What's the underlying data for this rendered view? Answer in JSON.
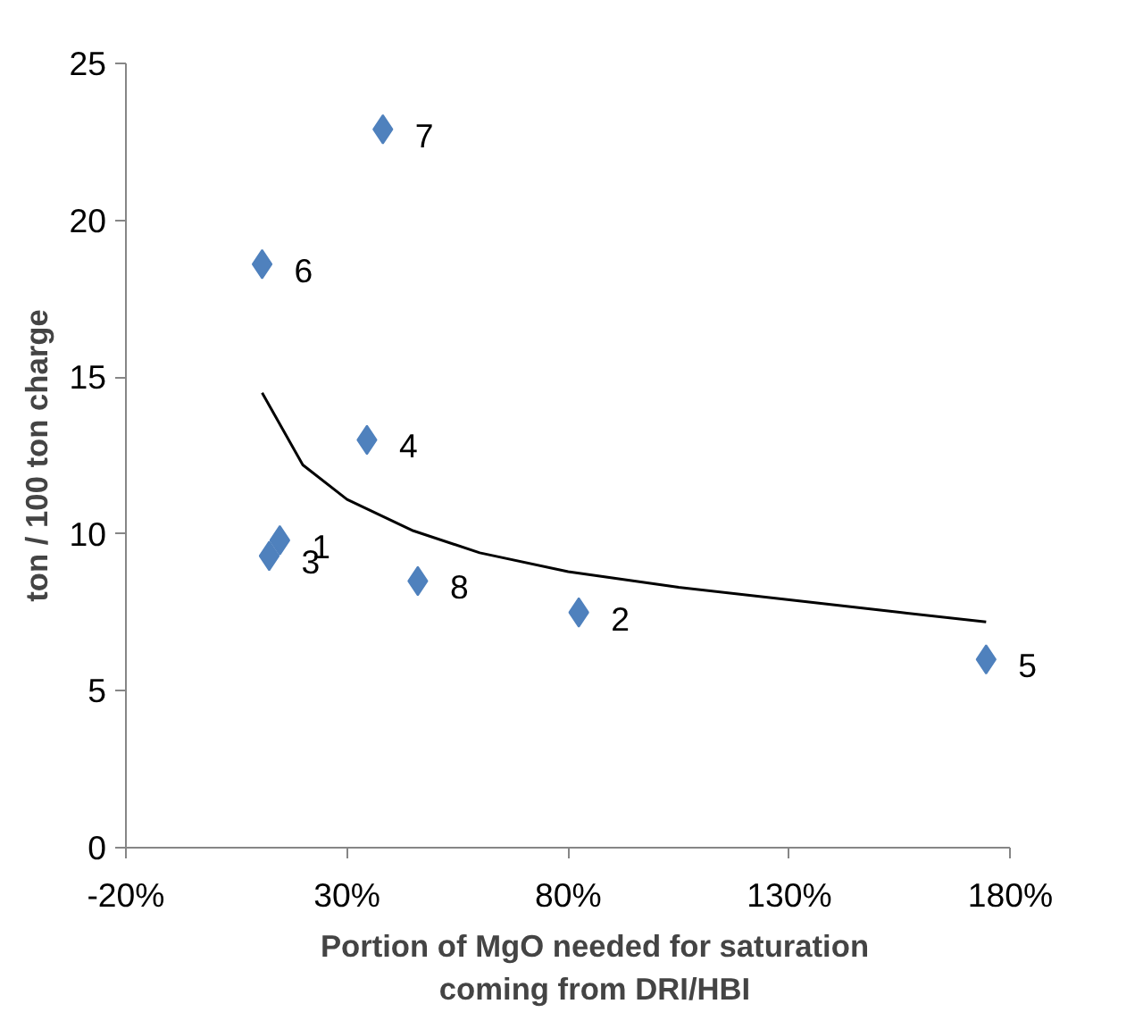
{
  "chart_data": {
    "type": "scatter",
    "xlabel": "Portion of MgO needed for saturation\ncoming from DRI/HBI",
    "ylabel": "ton / 100 ton charge",
    "xlim": [
      -20,
      180
    ],
    "ylim": [
      0,
      25
    ],
    "xticks": [
      {
        "value": -20,
        "label": "-20%"
      },
      {
        "value": 30,
        "label": "30%"
      },
      {
        "value": 80,
        "label": "80%"
      },
      {
        "value": 130,
        "label": "130%"
      },
      {
        "value": 180,
        "label": "180%"
      }
    ],
    "yticks": [
      0,
      5,
      10,
      15,
      20,
      25
    ],
    "grid": false,
    "series": [
      {
        "color": "#4f81bd",
        "marker": "diamond",
        "x": [
          14.8,
          82.4,
          12.4,
          34.5,
          174.5,
          10.8,
          38.1,
          46
        ],
        "values": [
          9.8,
          7.5,
          9.3,
          13.0,
          6.0,
          18.6,
          22.9,
          8.5
        ]
      },
      {
        "type": "line",
        "color": "#000000",
        "marker": "none",
        "line_style": "solid",
        "x": [
          10.8,
          20,
          30,
          45,
          60,
          80,
          105,
          130,
          155,
          174.5
        ],
        "values": [
          14.5,
          12.2,
          11.1,
          10.1,
          9.4,
          8.8,
          8.3,
          7.9,
          7.5,
          7.2
        ]
      }
    ],
    "annotations": [
      {
        "text": "1",
        "x": 14.8,
        "y": 9.8
      },
      {
        "text": "2",
        "x": 82.4,
        "y": 7.5
      },
      {
        "text": "3",
        "x": 12.4,
        "y": 9.3
      },
      {
        "text": "4",
        "x": 34.5,
        "y": 13.0
      },
      {
        "text": "5",
        "x": 174.5,
        "y": 6.0
      },
      {
        "text": "6",
        "x": 10.8,
        "y": 18.6
      },
      {
        "text": "7",
        "x": 38.1,
        "y": 22.9
      },
      {
        "text": "8",
        "x": 46,
        "y": 8.5
      }
    ]
  }
}
